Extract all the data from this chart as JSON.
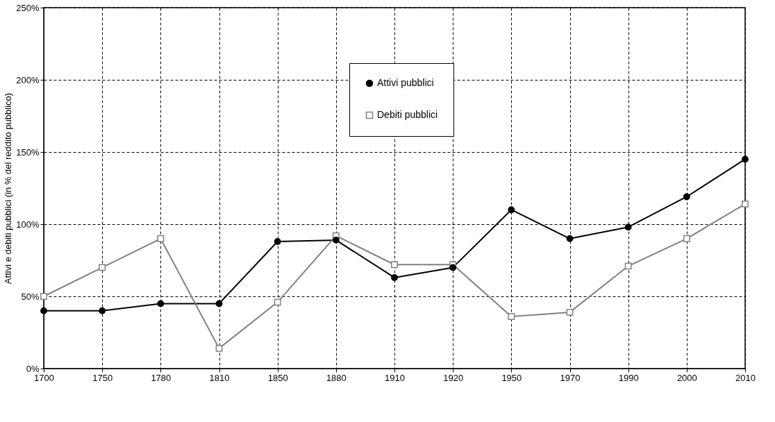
{
  "chart_data": {
    "type": "line",
    "ylabel": "Attivi e debiti pubblici (in % del reddito pubblico)",
    "categories": [
      "1700",
      "1750",
      "1780",
      "1810",
      "1850",
      "1880",
      "1910",
      "1920",
      "1950",
      "1970",
      "1990",
      "2000",
      "2010"
    ],
    "series": [
      {
        "name": "Attivi pubblici",
        "color": "#000000",
        "marker": "circle",
        "values": [
          40,
          40,
          45,
          45,
          88,
          89,
          63,
          70,
          110,
          90,
          98,
          119,
          145
        ]
      },
      {
        "name": "Debiti pubblici",
        "color": "#808080",
        "marker": "square",
        "values": [
          50,
          70,
          90,
          14,
          46,
          92,
          72,
          72,
          36,
          39,
          71,
          90,
          114
        ]
      }
    ],
    "ylim": [
      0,
      250
    ],
    "yticks": [
      {
        "value": 0,
        "label": "0%"
      },
      {
        "value": 50,
        "label": "50%"
      },
      {
        "value": 100,
        "label": "100%"
      },
      {
        "value": 150,
        "label": "150%"
      },
      {
        "value": 200,
        "label": "200%"
      },
      {
        "value": 250,
        "label": "250%"
      }
    ],
    "grid": true,
    "line_style": "solid",
    "legend": "top"
  }
}
